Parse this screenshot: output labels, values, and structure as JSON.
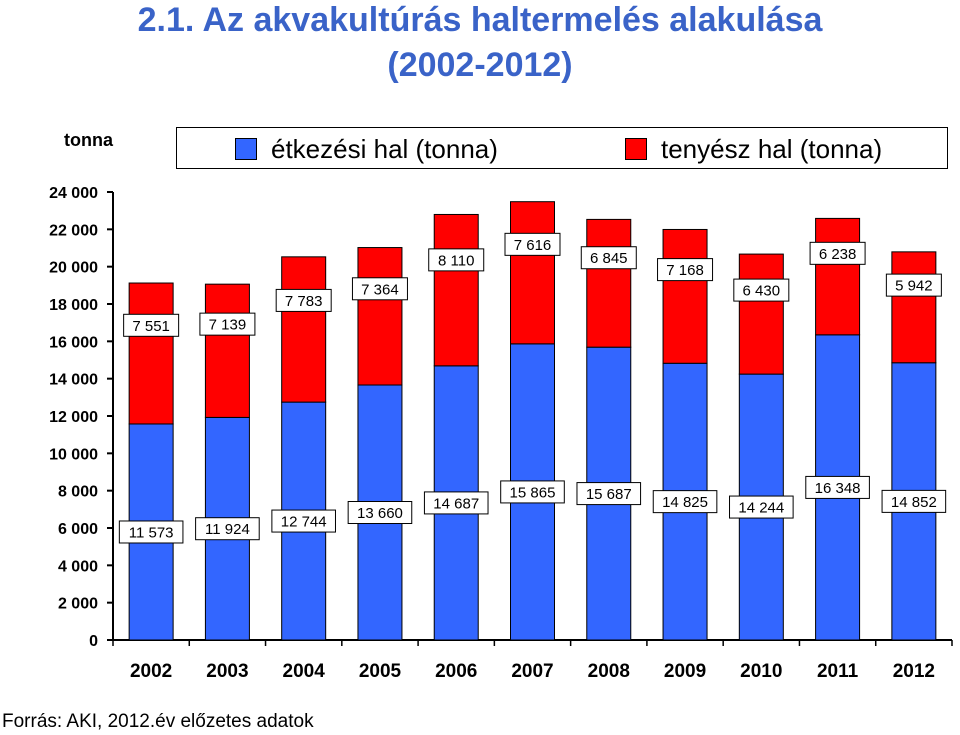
{
  "title_line1": "2.1. Az akvakultúrás haltermelés alakulása",
  "title_line2": "(2002-2012)",
  "source": "Forrás: AKI, 2012.év előzetes adatok",
  "chart_data": {
    "type": "bar",
    "stacked": true,
    "ylabel": "tonna",
    "ylim": [
      0,
      24000
    ],
    "yticks": [
      0,
      2000,
      4000,
      6000,
      8000,
      10000,
      12000,
      14000,
      16000,
      18000,
      20000,
      22000,
      24000
    ],
    "ytick_labels": [
      "0",
      "2 000",
      "4 000",
      "6 000",
      "8 000",
      "10 000",
      "12 000",
      "14 000",
      "16 000",
      "18 000",
      "20 000",
      "22 000",
      "24 000"
    ],
    "categories": [
      "2002",
      "2003",
      "2004",
      "2005",
      "2006",
      "2007",
      "2008",
      "2009",
      "2010",
      "2011",
      "2012"
    ],
    "legend_position": "top",
    "series": [
      {
        "name": "étkezési hal (tonna)",
        "color": "#3366ff",
        "values": [
          11573,
          11924,
          12744,
          13660,
          14687,
          15865,
          15687,
          14825,
          14244,
          16348,
          14852
        ],
        "labels": [
          "11 573",
          "11 924",
          "12 744",
          "13 660",
          "14 687",
          "15 865",
          "15 687",
          "14 825",
          "14 244",
          "16 348",
          "14 852"
        ]
      },
      {
        "name": "tenyész hal (tonna)",
        "color": "#ff0000",
        "values": [
          7551,
          7139,
          7783,
          7364,
          8110,
          7616,
          6845,
          7168,
          6430,
          6238,
          5942
        ],
        "labels": [
          "7 551",
          "7 139",
          "7 783",
          "7 364",
          "8 110",
          "7 616",
          "6 845",
          "7 168",
          "6 430",
          "6 238",
          "5 942"
        ]
      }
    ]
  }
}
